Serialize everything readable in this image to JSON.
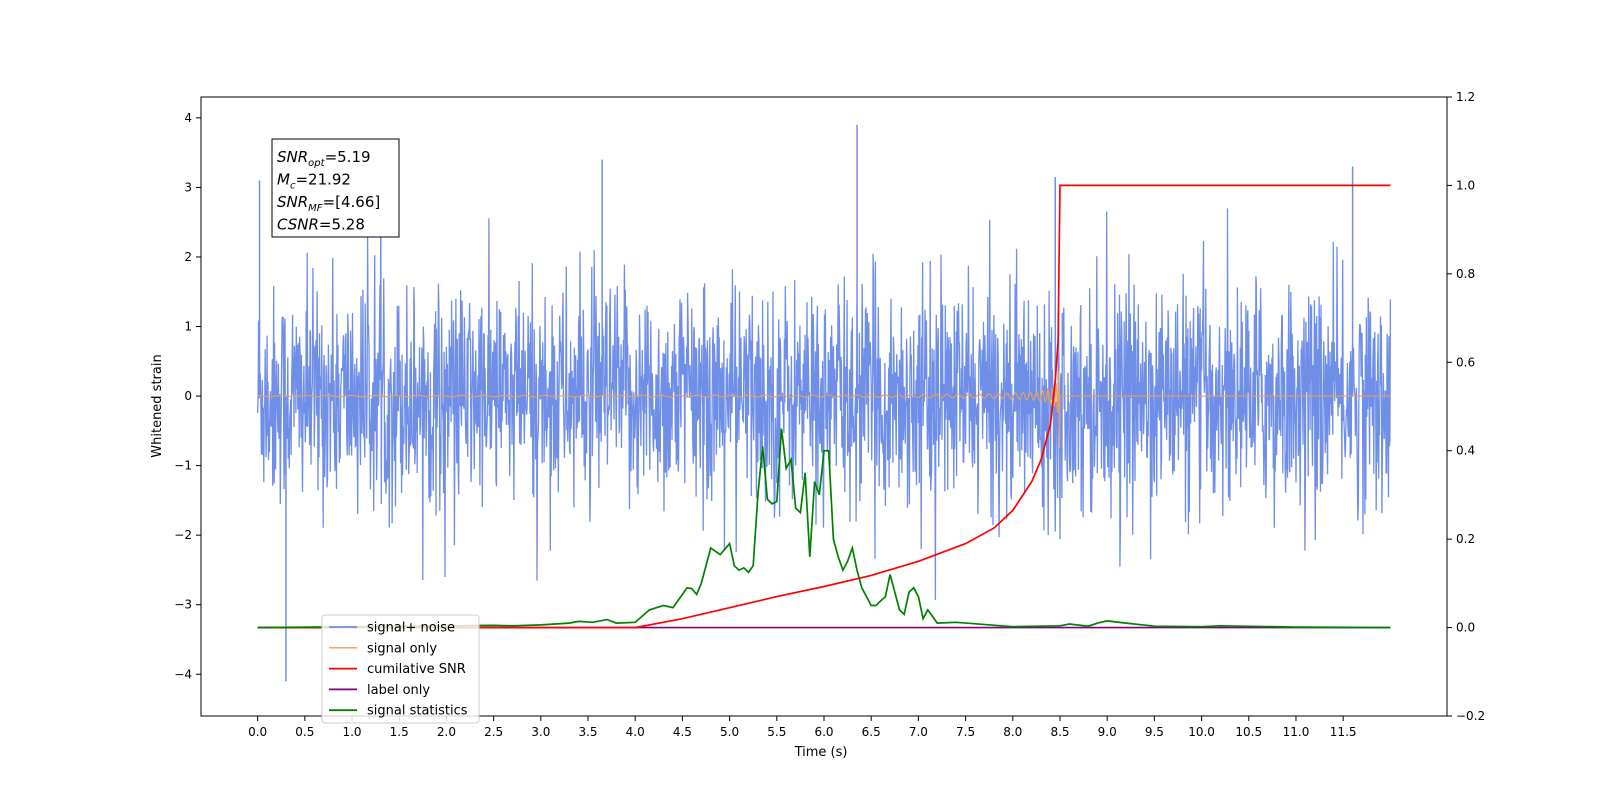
{
  "chart_data": {
    "type": "line",
    "xlabel": "Time (s)",
    "ylabel": "Whitened strain",
    "xlim": [
      -0.6,
      12.6
    ],
    "ylim": [
      -4.6,
      4.3
    ],
    "y2lim": [
      -0.2,
      1.2
    ],
    "x_ticks": [
      "0.0",
      "0.5",
      "1.0",
      "1.5",
      "2.0",
      "2.5",
      "3.0",
      "3.5",
      "4.0",
      "4.5",
      "5.0",
      "5.5",
      "6.0",
      "6.5",
      "7.0",
      "7.5",
      "8.0",
      "8.5",
      "9.0",
      "9.5",
      "10.0",
      "10.5",
      "11.0",
      "11.5"
    ],
    "y_ticks": [
      "4",
      "3",
      "2",
      "1",
      "0",
      "−1",
      "−2",
      "−3",
      "−4"
    ],
    "y2_ticks": [
      "1.2",
      "1.0",
      "0.8",
      "0.6",
      "0.4",
      "0.2",
      "0.0",
      "−0.2"
    ],
    "grid": false,
    "legend_position": "bottom-left",
    "annotation": {
      "lines": [
        {
          "base": "SNR",
          "sub": "opt",
          "value": "=5.19"
        },
        {
          "base": "M",
          "sub": "c",
          "value": "=21.92"
        },
        {
          "base": "SNR",
          "sub": "MF",
          "value": "=[4.66]"
        },
        {
          "base": "CSNR",
          "sub": "",
          "value": "=5.28"
        }
      ]
    },
    "series": [
      {
        "name": "signal+ noise",
        "color": "#6f8ee8",
        "axis": "left",
        "description": "whitened noise, amplitude roughly ±2.5 with spikes up to 3.9 and down to -4.1",
        "x_range": [
          0.0,
          12.0
        ],
        "notable_points": [
          [
            0.3,
            -4.1
          ],
          [
            6.35,
            3.9
          ],
          [
            11.6,
            3.3
          ],
          [
            3.65,
            3.4
          ],
          [
            8.45,
            3.15
          ],
          [
            0.02,
            3.1
          ]
        ]
      },
      {
        "name": "signal only",
        "color": "#e8a060",
        "axis": "left",
        "description": "chirp waveform ending at t=8.5 with peak amplitude about 1.0",
        "x_range": [
          0.0,
          12.0
        ]
      },
      {
        "name": "cumilative SNR",
        "color": "#ff0000",
        "axis": "right",
        "x": [
          0.0,
          4.0,
          4.5,
          5.0,
          5.5,
          6.0,
          6.5,
          7.0,
          7.5,
          7.8,
          8.0,
          8.2,
          8.3,
          8.4,
          8.45,
          8.48,
          8.5,
          12.0
        ],
        "values": [
          0.0,
          0.0,
          0.02,
          0.045,
          0.07,
          0.093,
          0.118,
          0.15,
          0.19,
          0.225,
          0.265,
          0.33,
          0.38,
          0.46,
          0.56,
          0.65,
          1.0,
          1.0
        ]
      },
      {
        "name": "label only",
        "color": "#800080",
        "axis": "right",
        "x": [
          0.0,
          12.0
        ],
        "values": [
          0.0,
          0.0
        ]
      },
      {
        "name": "signal statistics",
        "color": "#008000",
        "axis": "right",
        "x": [
          0.0,
          2.5,
          2.7,
          3.0,
          3.3,
          3.4,
          3.55,
          3.7,
          3.8,
          4.0,
          4.15,
          4.3,
          4.4,
          4.45,
          4.55,
          4.6,
          4.65,
          4.7,
          4.8,
          4.9,
          5.0,
          5.05,
          5.1,
          5.15,
          5.2,
          5.25,
          5.3,
          5.35,
          5.4,
          5.45,
          5.5,
          5.55,
          5.6,
          5.65,
          5.7,
          5.75,
          5.8,
          5.85,
          5.9,
          5.95,
          6.0,
          6.05,
          6.1,
          6.15,
          6.2,
          6.25,
          6.3,
          6.35,
          6.4,
          6.45,
          6.5,
          6.55,
          6.6,
          6.65,
          6.7,
          6.75,
          6.8,
          6.85,
          6.9,
          6.95,
          7.0,
          7.05,
          7.1,
          7.2,
          7.4,
          8.0,
          8.5,
          8.6,
          8.8,
          8.9,
          9.0,
          9.2,
          9.5,
          10.0,
          10.2,
          11.0,
          12.0
        ],
        "values": [
          0.0,
          0.005,
          0.004,
          0.006,
          0.01,
          0.014,
          0.012,
          0.018,
          0.01,
          0.012,
          0.04,
          0.05,
          0.045,
          0.06,
          0.09,
          0.088,
          0.075,
          0.1,
          0.18,
          0.165,
          0.19,
          0.14,
          0.13,
          0.135,
          0.125,
          0.14,
          0.3,
          0.41,
          0.29,
          0.28,
          0.285,
          0.45,
          0.36,
          0.38,
          0.27,
          0.26,
          0.35,
          0.16,
          0.33,
          0.3,
          0.4,
          0.4,
          0.2,
          0.16,
          0.13,
          0.15,
          0.18,
          0.13,
          0.09,
          0.07,
          0.05,
          0.05,
          0.06,
          0.07,
          0.12,
          0.08,
          0.04,
          0.03,
          0.08,
          0.09,
          0.07,
          0.02,
          0.04,
          0.01,
          0.012,
          0.002,
          0.004,
          0.008,
          0.003,
          0.01,
          0.015,
          0.01,
          0.003,
          0.002,
          0.004,
          0.001,
          0.0
        ]
      }
    ],
    "legend": [
      "signal+ noise",
      "signal only",
      "cumilative SNR",
      "label only",
      "signal statistics"
    ]
  }
}
